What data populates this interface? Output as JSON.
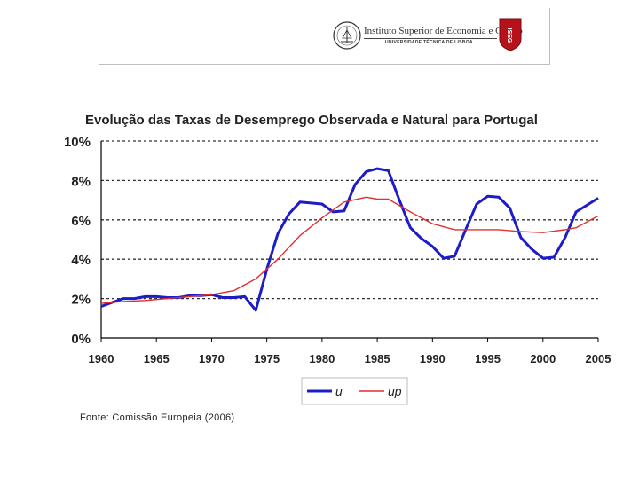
{
  "header": {
    "institution": "Instituto Superior de Economia e Gestão",
    "university": "UNIVERSIDADE TÉCNICA DE LISBOA",
    "shield_text": "ISEG"
  },
  "source": "Fonte: Comissão Europeia (2006)",
  "chart_data": {
    "type": "line",
    "title": "Evolução das Taxas de Desemprego Observada e Natural para Portugal",
    "xlabel": "",
    "ylabel": "",
    "xlim": [
      1960,
      2005
    ],
    "ylim": [
      0,
      10
    ],
    "x_ticks": [
      "1960",
      "1965",
      "1970",
      "1975",
      "1980",
      "1985",
      "1990",
      "1995",
      "2000",
      "2005"
    ],
    "y_ticks": [
      "0%",
      "2%",
      "4%",
      "6%",
      "8%",
      "10%"
    ],
    "grid": "horizontal dashed",
    "legend_position": "bottom",
    "series": [
      {
        "name": "u",
        "color": "#1c1cc8",
        "x": [
          1960,
          1961,
          1962,
          1963,
          1964,
          1965,
          1966,
          1967,
          1968,
          1969,
          1970,
          1971,
          1972,
          1973,
          1974,
          1975,
          1976,
          1977,
          1978,
          1979,
          1980,
          1981,
          1982,
          1983,
          1984,
          1985,
          1986,
          1987,
          1988,
          1989,
          1990,
          1991,
          1992,
          1993,
          1994,
          1995,
          1996,
          1997,
          1998,
          1999,
          2000,
          2001,
          2002,
          2003,
          2004,
          2005
        ],
        "values": [
          1.6,
          1.8,
          2.0,
          2.0,
          2.1,
          2.1,
          2.05,
          2.05,
          2.15,
          2.15,
          2.2,
          2.05,
          2.05,
          2.1,
          1.4,
          3.5,
          5.3,
          6.3,
          6.9,
          6.85,
          6.8,
          6.4,
          6.45,
          7.8,
          8.45,
          8.6,
          8.5,
          7.0,
          5.6,
          5.05,
          4.65,
          4.05,
          4.15,
          5.5,
          6.8,
          7.2,
          7.15,
          6.6,
          5.1,
          4.5,
          4.05,
          4.1,
          5.1,
          6.4,
          6.75,
          7.1
        ]
      },
      {
        "name": "up",
        "color": "#e03030",
        "x": [
          1960,
          1962,
          1964,
          1966,
          1968,
          1970,
          1972,
          1974,
          1976,
          1978,
          1980,
          1982,
          1984,
          1985,
          1986,
          1988,
          1990,
          1992,
          1994,
          1996,
          1998,
          2000,
          2002,
          2003,
          2005
        ],
        "values": [
          1.75,
          1.85,
          1.9,
          2.0,
          2.1,
          2.2,
          2.4,
          3.0,
          4.0,
          5.2,
          6.1,
          6.9,
          7.15,
          7.05,
          7.05,
          6.4,
          5.8,
          5.5,
          5.5,
          5.5,
          5.4,
          5.35,
          5.5,
          5.6,
          6.2
        ]
      }
    ]
  }
}
